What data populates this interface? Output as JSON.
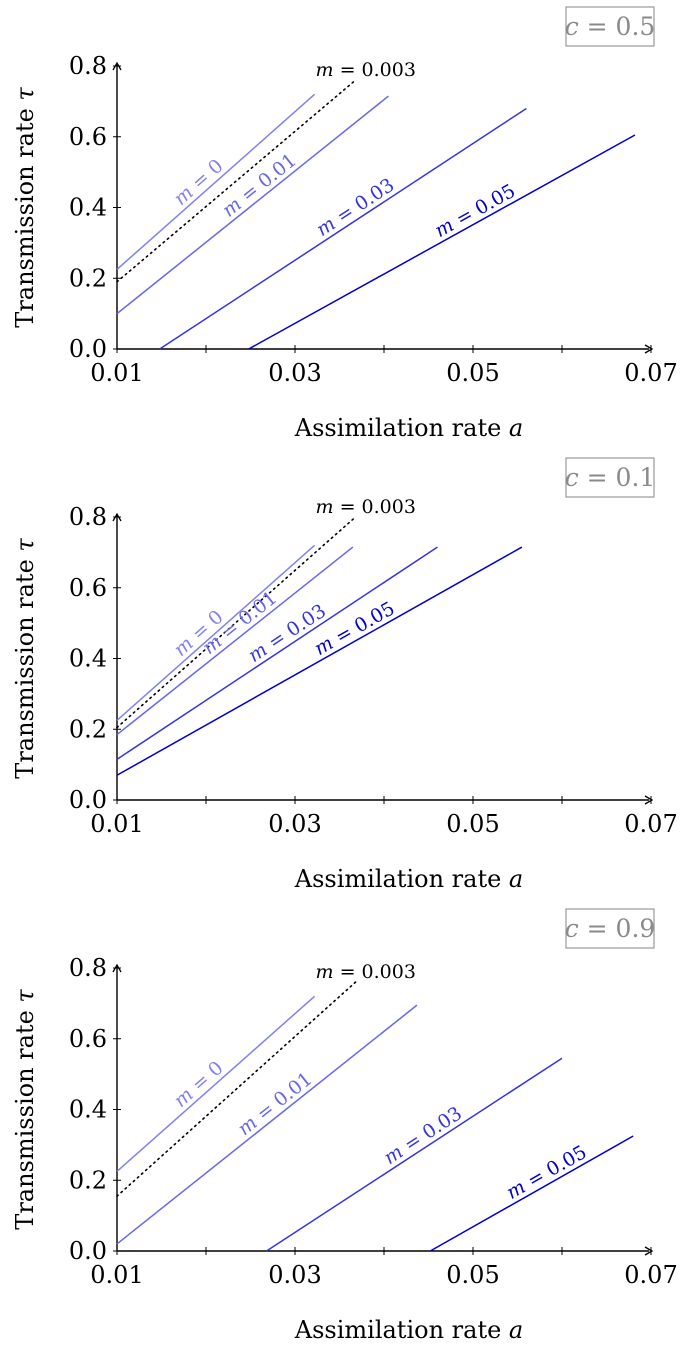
{
  "chart_data": [
    {
      "type": "line",
      "panel_label": {
        "var": "c",
        "text": " = 0.5"
      },
      "xlabel": {
        "text": "Assimilation rate ",
        "var": "a"
      },
      "ylabel": {
        "text": "Transmission rate ",
        "var": "τ"
      },
      "xlim": [
        0.01,
        0.07
      ],
      "ylim": [
        0.0,
        0.8
      ],
      "xticks": [
        "0.01",
        "0.03",
        "0.05",
        "0.07"
      ],
      "yticks": [
        "0.0",
        "0.2",
        "0.4",
        "0.6",
        "0.8"
      ],
      "series": [
        {
          "name": "m = 0",
          "label_var": "m",
          "label_text": " = 0",
          "style": "solid",
          "color": "#8080f3",
          "x": [
            0.01,
            0.0322
          ],
          "y": [
            0.225,
            0.72
          ]
        },
        {
          "name": "m = 0.003",
          "label_var": "m",
          "label_text": " = 0.003",
          "style": "dotted",
          "color": "#000000",
          "x": [
            0.01,
            0.0368
          ],
          "y": [
            0.19,
            0.76
          ]
        },
        {
          "name": "m = 0.01",
          "label_var": "m",
          "label_text": " = 0.01",
          "style": "solid",
          "color": "#6767ee",
          "x": [
            0.01,
            0.0405
          ],
          "y": [
            0.1,
            0.715
          ]
        },
        {
          "name": "m = 0.03",
          "label_var": "m",
          "label_text": " = 0.03",
          "style": "solid",
          "color": "#3434e4",
          "x": [
            0.0148,
            0.056
          ],
          "y": [
            0.0,
            0.68
          ]
        },
        {
          "name": "m = 0.05",
          "label_var": "m",
          "label_text": " = 0.05",
          "style": "solid",
          "color": "#0000d2",
          "x": [
            0.0248,
            0.0682
          ],
          "y": [
            0.0,
            0.605
          ]
        }
      ]
    },
    {
      "type": "line",
      "panel_label": {
        "var": "c",
        "text": " = 0.1"
      },
      "xlabel": {
        "text": "Assimilation rate ",
        "var": "a"
      },
      "ylabel": {
        "text": "Transmission rate ",
        "var": "τ"
      },
      "xlim": [
        0.01,
        0.07
      ],
      "ylim": [
        0.0,
        0.8
      ],
      "xticks": [
        "0.01",
        "0.03",
        "0.05",
        "0.07"
      ],
      "yticks": [
        "0.0",
        "0.2",
        "0.4",
        "0.6",
        "0.8"
      ],
      "series": [
        {
          "name": "m = 0",
          "label_var": "m",
          "label_text": " = 0",
          "style": "solid",
          "color": "#8080f3",
          "x": [
            0.01,
            0.0322
          ],
          "y": [
            0.225,
            0.72
          ]
        },
        {
          "name": "m = 0.003",
          "label_var": "m",
          "label_text": " = 0.003",
          "style": "dotted",
          "color": "#000000",
          "x": [
            0.01,
            0.0368
          ],
          "y": [
            0.205,
            0.8
          ]
        },
        {
          "name": "m = 0.01",
          "label_var": "m",
          "label_text": " = 0.01",
          "style": "solid",
          "color": "#6767ee",
          "x": [
            0.01,
            0.0365
          ],
          "y": [
            0.185,
            0.715
          ]
        },
        {
          "name": "m = 0.03",
          "label_var": "m",
          "label_text": " = 0.03",
          "style": "solid",
          "color": "#3434e4",
          "x": [
            0.01,
            0.046
          ],
          "y": [
            0.115,
            0.715
          ]
        },
        {
          "name": "m = 0.05",
          "label_var": "m",
          "label_text": " = 0.05",
          "style": "solid",
          "color": "#0000d2",
          "x": [
            0.01,
            0.0555
          ],
          "y": [
            0.07,
            0.715
          ]
        }
      ]
    },
    {
      "type": "line",
      "panel_label": {
        "var": "c",
        "text": " = 0.9"
      },
      "xlabel": {
        "text": "Assimilation rate ",
        "var": "a"
      },
      "ylabel": {
        "text": "Transmission rate ",
        "var": "τ"
      },
      "xlim": [
        0.01,
        0.07
      ],
      "ylim": [
        0.0,
        0.8
      ],
      "xticks": [
        "0.01",
        "0.03",
        "0.05",
        "0.07"
      ],
      "yticks": [
        "0.0",
        "0.2",
        "0.4",
        "0.6",
        "0.8"
      ],
      "series": [
        {
          "name": "m = 0",
          "label_var": "m",
          "label_text": " = 0",
          "style": "solid",
          "color": "#8080f3",
          "x": [
            0.01,
            0.0322
          ],
          "y": [
            0.225,
            0.72
          ]
        },
        {
          "name": "m = 0.003",
          "label_var": "m",
          "label_text": " = 0.003",
          "style": "dotted",
          "color": "#000000",
          "x": [
            0.01,
            0.0368
          ],
          "y": [
            0.155,
            0.76
          ]
        },
        {
          "name": "m = 0.01",
          "label_var": "m",
          "label_text": " = 0.01",
          "style": "solid",
          "color": "#6767ee",
          "x": [
            0.01,
            0.0437
          ],
          "y": [
            0.02,
            0.695
          ]
        },
        {
          "name": "m = 0.03",
          "label_var": "m",
          "label_text": " = 0.03",
          "style": "solid",
          "color": "#3434e4",
          "x": [
            0.0268,
            0.06
          ],
          "y": [
            0.0,
            0.545
          ]
        },
        {
          "name": "m = 0.05",
          "label_var": "m",
          "label_text": " = 0.05",
          "style": "solid",
          "color": "#0000d2",
          "x": [
            0.0452,
            0.068
          ],
          "y": [
            0.0,
            0.325
          ]
        }
      ]
    }
  ]
}
